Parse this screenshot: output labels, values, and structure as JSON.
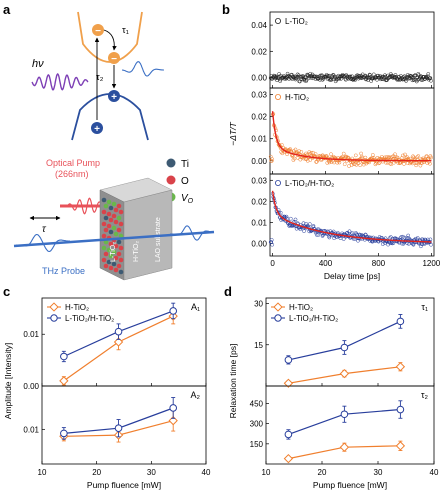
{
  "panels": {
    "a": "a",
    "b": "b",
    "c": "c",
    "d": "d"
  },
  "schematic": {
    "hv_label": "hν",
    "tau1": "τ₁",
    "tau2": "τ₂",
    "tau": "τ",
    "electron_sign": "−",
    "hole_sign": "+",
    "legend": [
      {
        "label": "Ti",
        "color": "#3d5a73"
      },
      {
        "label": "O",
        "color": "#d9434a"
      },
      {
        "label": "V_O",
        "color": "#69b84a"
      }
    ],
    "optical_pump_line1": "Optical Pump",
    "optical_pump_line2": "(266nm)",
    "thz_probe": "THz Probe",
    "layer_l": "L-TiO₂",
    "layer_h": "H-TiO₂",
    "substrate": "LAO substrate",
    "colors": {
      "conduction": "#f0a04b",
      "valence": "#2b4f9e",
      "pump": "#e8525a",
      "probe": "#3b6fc4",
      "hv": "#7d3fb5"
    }
  },
  "chart_data": [
    {
      "id": "b",
      "type": "scatter",
      "xlabel": "Delay time [ps]",
      "ylabel": "−ΔT/T",
      "xlim": [
        -20,
        1220
      ],
      "x_ticks": [
        0,
        400,
        800,
        1200
      ],
      "subplots": [
        {
          "name": "L-TiO₂",
          "color": "#222222",
          "ylim": [
            -0.008,
            0.05
          ],
          "y_ticks": [
            0.0,
            0.02,
            0.04
          ],
          "A1": 0.0,
          "tau1": 10,
          "A2": 0.0,
          "tau2": 200,
          "noise": 0.0018,
          "fit": false
        },
        {
          "name": "H-TiO₂",
          "color": "#f07f2e",
          "fit_color": "#e3231c",
          "ylim": [
            -0.006,
            0.033
          ],
          "y_ticks": [
            0.0,
            0.01,
            0.02,
            0.03
          ],
          "A1": 0.016,
          "tau1": 24,
          "A2": 0.0065,
          "tau2": 210,
          "noise": 0.0018,
          "fit": true
        },
        {
          "name": "L-TiO₂/H-TiO₂",
          "color": "#283e9c",
          "fit_color": "#e3231c",
          "ylim": [
            -0.006,
            0.033
          ],
          "y_ticks": [
            0.0,
            0.01,
            0.02,
            0.03
          ],
          "A1": 0.011,
          "tau1": 24,
          "A2": 0.014,
          "tau2": 400,
          "noise": 0.0015,
          "fit": true
        }
      ]
    },
    {
      "id": "c",
      "type": "line",
      "xlabel": "Pump fluence [mW]",
      "ylabel": "Amplitude  [Intensity]",
      "xlim": [
        10,
        40
      ],
      "x_ticks": [
        10,
        20,
        30,
        40
      ],
      "legend": [
        "H-TiO₂",
        "L-TiO₂/H-TiO₂"
      ],
      "subplots": [
        {
          "label": "A₁",
          "ylim": [
            0,
            0.017
          ],
          "y_ticks": [
            0.0,
            0.01
          ],
          "series": [
            {
              "name": "H-TiO₂",
              "color": "#f07f2e",
              "x": [
                14,
                24,
                34
              ],
              "y": [
                0.001,
                0.0085,
                0.0135
              ],
              "err": [
                0.0008,
                0.0015,
                0.0015
              ]
            },
            {
              "name": "L-TiO₂/H-TiO₂",
              "color": "#283e9c",
              "x": [
                14,
                24,
                34
              ],
              "y": [
                0.0057,
                0.0105,
                0.0145
              ],
              "err": [
                0.001,
                0.0015,
                0.0015
              ]
            }
          ]
        },
        {
          "label": "A₂",
          "ylim": [
            0.004,
            0.0175
          ],
          "y_ticks": [
            0.01
          ],
          "series": [
            {
              "name": "H-TiO₂",
              "color": "#f07f2e",
              "x": [
                14,
                24,
                34
              ],
              "y": [
                0.0088,
                0.009,
                0.0115
              ],
              "err": [
                0.0008,
                0.0012,
                0.0018
              ]
            },
            {
              "name": "L-TiO₂/H-TiO₂",
              "color": "#283e9c",
              "x": [
                14,
                24,
                34
              ],
              "y": [
                0.0093,
                0.0102,
                0.0137
              ],
              "err": [
                0.001,
                0.0015,
                0.0018
              ]
            }
          ]
        }
      ]
    },
    {
      "id": "d",
      "type": "line",
      "xlabel": "Pump fluence [mW]",
      "ylabel": "Relaxation time [ps]",
      "xlim": [
        10,
        40
      ],
      "x_ticks": [
        10,
        20,
        30,
        40
      ],
      "legend": [
        "H-TiO₂",
        "L-TiO₂/H-TiO₂"
      ],
      "subplots": [
        {
          "label": "τ₁",
          "ylim": [
            0,
            32
          ],
          "y_ticks": [
            15,
            30
          ],
          "series": [
            {
              "name": "H-TiO₂",
              "color": "#f07f2e",
              "x": [
                14,
                24,
                34
              ],
              "y": [
                1,
                4.5,
                7
              ],
              "err": [
                0.8,
                1.2,
                1.5
              ]
            },
            {
              "name": "L-TiO₂/H-TiO₂",
              "color": "#283e9c",
              "x": [
                14,
                24,
                34
              ],
              "y": [
                9.5,
                14,
                23.5
              ],
              "err": [
                1.5,
                2.5,
                2.5
              ]
            }
          ]
        },
        {
          "label": "τ₂",
          "ylim": [
            0,
            580
          ],
          "y_ticks": [
            150,
            300,
            450
          ],
          "series": [
            {
              "name": "H-TiO₂",
              "color": "#f07f2e",
              "x": [
                14,
                24,
                34
              ],
              "y": [
                40,
                125,
                135
              ],
              "err": [
                15,
                30,
                35
              ]
            },
            {
              "name": "L-TiO₂/H-TiO₂",
              "color": "#283e9c",
              "x": [
                14,
                24,
                34
              ],
              "y": [
                220,
                370,
                405
              ],
              "err": [
                35,
                60,
                65
              ]
            }
          ]
        }
      ]
    }
  ]
}
